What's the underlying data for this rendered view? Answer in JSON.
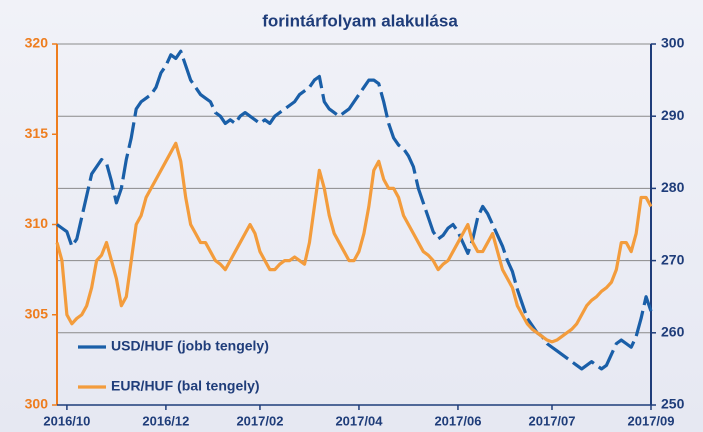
{
  "chart_data": {
    "type": "line",
    "title": "forintárfolyam alakulása",
    "categories": [
      null,
      null,
      "2016/10",
      null,
      null,
      null,
      null,
      null,
      null,
      null,
      null,
      null,
      null,
      null,
      null,
      null,
      null,
      null,
      null,
      null,
      null,
      null,
      "2016/12",
      null,
      null,
      null,
      null,
      null,
      null,
      null,
      null,
      null,
      null,
      null,
      null,
      null,
      null,
      null,
      null,
      null,
      null,
      "2017/02",
      null,
      null,
      null,
      null,
      null,
      null,
      null,
      null,
      null,
      null,
      null,
      null,
      null,
      null,
      null,
      null,
      null,
      null,
      null,
      "2017/04",
      null,
      null,
      null,
      null,
      null,
      null,
      null,
      null,
      null,
      null,
      null,
      null,
      null,
      null,
      null,
      null,
      null,
      null,
      null,
      "2017/06",
      null,
      null,
      null,
      null,
      null,
      null,
      null,
      null,
      null,
      null,
      null,
      null,
      null,
      null,
      null,
      null,
      null,
      null,
      "2017/07",
      null,
      null,
      null,
      null,
      null,
      null,
      null,
      null,
      null,
      null,
      null,
      null,
      null,
      null,
      null,
      null,
      null,
      null,
      null,
      "2017/09"
    ],
    "series": [
      {
        "name": "USD/HUF (jobb tengely)",
        "color": "#1a5fa8",
        "axis": "y2",
        "dashed": true,
        "values": [
          275,
          274.5,
          274,
          272,
          273,
          276,
          279,
          282,
          283,
          284,
          283.5,
          281,
          278,
          280,
          284,
          287,
          291,
          292,
          292.5,
          293,
          294,
          296,
          297,
          298.5,
          298,
          299,
          297,
          295,
          294,
          293,
          292.5,
          292,
          290.5,
          290,
          289,
          289.5,
          289,
          290,
          290.5,
          290,
          289.5,
          289,
          289.5,
          289,
          290,
          290.5,
          291,
          291.5,
          292,
          293,
          293.5,
          294,
          295,
          295.5,
          292,
          291,
          290.5,
          290,
          290.5,
          291,
          292,
          293,
          294,
          295,
          295,
          294.5,
          292,
          289,
          287,
          286,
          285.5,
          284.5,
          283,
          280,
          278,
          276,
          274,
          273,
          273.5,
          274.5,
          275,
          274,
          272.5,
          271,
          273,
          276,
          277.5,
          276.5,
          275,
          273.5,
          272,
          270,
          268.5,
          266,
          264,
          262,
          261,
          260,
          259.5,
          258.5,
          258,
          257.5,
          257,
          256.5,
          256,
          255.5,
          255,
          255.5,
          256,
          255.5,
          255,
          255.5,
          257,
          258.5,
          259,
          258.5,
          258,
          259.5,
          262,
          265,
          263
        ]
      },
      {
        "name": "EUR/HUF (bal tengely)",
        "color": "#f39c3c",
        "axis": "y",
        "values": [
          309,
          308,
          305,
          304.5,
          304.8,
          305,
          305.5,
          306.5,
          308,
          308.3,
          309,
          308,
          307,
          305.5,
          306,
          308,
          310,
          310.5,
          311.5,
          312,
          312.5,
          313,
          313.5,
          314,
          314.5,
          313.5,
          311.5,
          310,
          309.5,
          309,
          309,
          308.5,
          308,
          307.8,
          307.5,
          308,
          308.5,
          309,
          309.5,
          310,
          309.5,
          308.5,
          308,
          307.5,
          307.5,
          307.8,
          308,
          308,
          308.2,
          308,
          307.8,
          309,
          311,
          313,
          312,
          310.5,
          309.5,
          309,
          308.5,
          308,
          308,
          308.5,
          309.5,
          311,
          313,
          313.5,
          312.5,
          312,
          312,
          311.5,
          310.5,
          310,
          309.5,
          309,
          308.5,
          308.3,
          308,
          307.5,
          307.8,
          308,
          308.5,
          309,
          309.5,
          310,
          309,
          308.5,
          308.5,
          309,
          309.5,
          308.5,
          307.5,
          307,
          306.5,
          305.5,
          305,
          304.5,
          304.2,
          304,
          303.8,
          303.6,
          303.5,
          303.6,
          303.8,
          304,
          304.2,
          304.5,
          305,
          305.5,
          305.8,
          306,
          306.3,
          306.5,
          306.8,
          307.5,
          309,
          309,
          308.5,
          309.5,
          311.5,
          311.5,
          311
        ]
      }
    ],
    "ylim": [
      300,
      320
    ],
    "yticks": [
      300,
      305,
      310,
      315,
      320
    ],
    "ycolor": "#ee7d1e",
    "y2lim": [
      250,
      300
    ],
    "y2ticks": [
      250,
      260,
      270,
      280,
      290,
      300
    ],
    "y2color": "#1f3d7a",
    "grid": true,
    "legend": "lower left"
  }
}
